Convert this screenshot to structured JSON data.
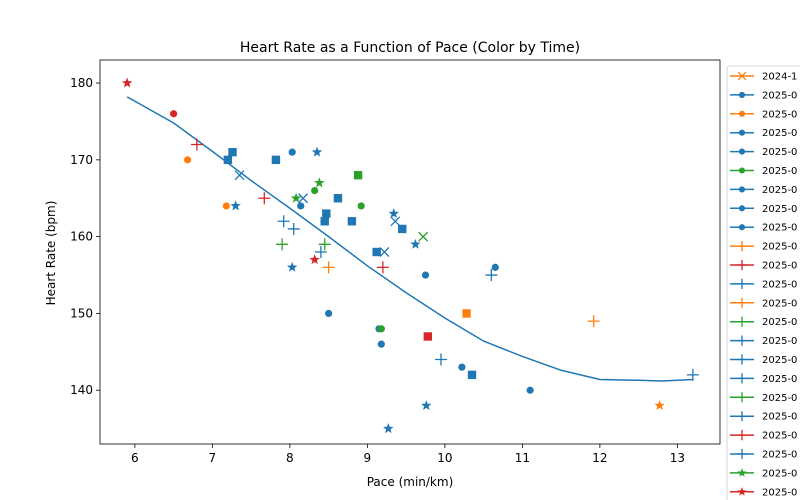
{
  "chart_data": {
    "type": "scatter",
    "title": "Heart Rate as a Function of Pace (Color by Time)",
    "xlabel": "Pace (min/km)",
    "ylabel": "Heart Rate (bpm)",
    "xlim": [
      5.55,
      13.55
    ],
    "ylim": [
      133,
      183
    ],
    "xticks": [
      6,
      7,
      8,
      9,
      10,
      11,
      12,
      13
    ],
    "yticks": [
      140,
      150,
      160,
      170,
      180
    ],
    "grid": false,
    "legend_position": "right",
    "colors": {
      "blue": "#1f77b4",
      "orange": "#ff7f0e",
      "green": "#2ca02c",
      "red": "#d62728"
    },
    "legend": [
      {
        "label": "2024-1",
        "color": "#ff7f0e",
        "marker": "x"
      },
      {
        "label": "2025-0",
        "color": "#1f77b4",
        "marker": "circle"
      },
      {
        "label": "2025-0",
        "color": "#ff7f0e",
        "marker": "circle"
      },
      {
        "label": "2025-0",
        "color": "#1f77b4",
        "marker": "circle"
      },
      {
        "label": "2025-0",
        "color": "#1f77b4",
        "marker": "circle"
      },
      {
        "label": "2025-0",
        "color": "#2ca02c",
        "marker": "circle"
      },
      {
        "label": "2025-0",
        "color": "#1f77b4",
        "marker": "circle"
      },
      {
        "label": "2025-0",
        "color": "#1f77b4",
        "marker": "circle"
      },
      {
        "label": "2025-0",
        "color": "#1f77b4",
        "marker": "circle"
      },
      {
        "label": "2025-0",
        "color": "#ff7f0e",
        "marker": "plus"
      },
      {
        "label": "2025-0",
        "color": "#d62728",
        "marker": "plus"
      },
      {
        "label": "2025-0",
        "color": "#1f77b4",
        "marker": "plus"
      },
      {
        "label": "2025-0",
        "color": "#ff7f0e",
        "marker": "plus"
      },
      {
        "label": "2025-0",
        "color": "#2ca02c",
        "marker": "plus"
      },
      {
        "label": "2025-0",
        "color": "#1f77b4",
        "marker": "plus"
      },
      {
        "label": "2025-0",
        "color": "#1f77b4",
        "marker": "plus"
      },
      {
        "label": "2025-0",
        "color": "#1f77b4",
        "marker": "plus"
      },
      {
        "label": "2025-0",
        "color": "#2ca02c",
        "marker": "plus"
      },
      {
        "label": "2025-0",
        "color": "#1f77b4",
        "marker": "plus"
      },
      {
        "label": "2025-0",
        "color": "#d62728",
        "marker": "plus"
      },
      {
        "label": "2025-0",
        "color": "#1f77b4",
        "marker": "plus"
      },
      {
        "label": "2025-0",
        "color": "#2ca02c",
        "marker": "star"
      },
      {
        "label": "2025-0",
        "color": "#d62728",
        "marker": "star"
      }
    ],
    "points": [
      {
        "x": 13.2,
        "y": 142,
        "color": "#1f77b4",
        "marker": "plus"
      },
      {
        "x": 5.9,
        "y": 180,
        "color": "#d62728",
        "marker": "star"
      },
      {
        "x": 6.5,
        "y": 176,
        "color": "#d62728",
        "marker": "circle"
      },
      {
        "x": 6.8,
        "y": 172,
        "color": "#d62728",
        "marker": "plus"
      },
      {
        "x": 6.68,
        "y": 170,
        "color": "#ff7f0e",
        "marker": "circle"
      },
      {
        "x": 7.2,
        "y": 170,
        "color": "#1f77b4",
        "marker": "square"
      },
      {
        "x": 7.26,
        "y": 171,
        "color": "#1f77b4",
        "marker": "square"
      },
      {
        "x": 7.35,
        "y": 168,
        "color": "#1f77b4",
        "marker": "x"
      },
      {
        "x": 7.18,
        "y": 164,
        "color": "#ff7f0e",
        "marker": "circle"
      },
      {
        "x": 7.3,
        "y": 164,
        "color": "#1f77b4",
        "marker": "star"
      },
      {
        "x": 7.67,
        "y": 165,
        "color": "#d62728",
        "marker": "plus"
      },
      {
        "x": 7.82,
        "y": 170,
        "color": "#1f77b4",
        "marker": "square"
      },
      {
        "x": 8.03,
        "y": 171,
        "color": "#1f77b4",
        "marker": "circle"
      },
      {
        "x": 8.35,
        "y": 171,
        "color": "#1f77b4",
        "marker": "star"
      },
      {
        "x": 8.38,
        "y": 167,
        "color": "#2ca02c",
        "marker": "star"
      },
      {
        "x": 8.32,
        "y": 166,
        "color": "#2ca02c",
        "marker": "circle"
      },
      {
        "x": 8.08,
        "y": 165,
        "color": "#2ca02c",
        "marker": "star"
      },
      {
        "x": 8.17,
        "y": 165,
        "color": "#1f77b4",
        "marker": "x"
      },
      {
        "x": 8.14,
        "y": 164,
        "color": "#1f77b4",
        "marker": "circle"
      },
      {
        "x": 7.92,
        "y": 162,
        "color": "#1f77b4",
        "marker": "plus"
      },
      {
        "x": 8.05,
        "y": 161,
        "color": "#1f77b4",
        "marker": "plus"
      },
      {
        "x": 7.9,
        "y": 159,
        "color": "#2ca02c",
        "marker": "plus"
      },
      {
        "x": 8.45,
        "y": 159,
        "color": "#2ca02c",
        "marker": "plus"
      },
      {
        "x": 8.4,
        "y": 158,
        "color": "#1f77b4",
        "marker": "plus"
      },
      {
        "x": 8.32,
        "y": 157,
        "color": "#d62728",
        "marker": "star"
      },
      {
        "x": 8.03,
        "y": 156,
        "color": "#1f77b4",
        "marker": "star"
      },
      {
        "x": 8.5,
        "y": 156,
        "color": "#ff7f0e",
        "marker": "plus"
      },
      {
        "x": 8.62,
        "y": 165,
        "color": "#1f77b4",
        "marker": "square"
      },
      {
        "x": 8.47,
        "y": 163,
        "color": "#1f77b4",
        "marker": "square"
      },
      {
        "x": 8.45,
        "y": 162,
        "color": "#1f77b4",
        "marker": "square"
      },
      {
        "x": 8.88,
        "y": 168,
        "color": "#2ca02c",
        "marker": "square"
      },
      {
        "x": 8.92,
        "y": 164,
        "color": "#2ca02c",
        "marker": "circle"
      },
      {
        "x": 8.8,
        "y": 162,
        "color": "#1f77b4",
        "marker": "square"
      },
      {
        "x": 8.5,
        "y": 150,
        "color": "#1f77b4",
        "marker": "circle"
      },
      {
        "x": 9.12,
        "y": 158,
        "color": "#1f77b4",
        "marker": "square"
      },
      {
        "x": 9.22,
        "y": 158,
        "color": "#1f77b4",
        "marker": "x"
      },
      {
        "x": 9.2,
        "y": 156,
        "color": "#d62728",
        "marker": "plus"
      },
      {
        "x": 9.34,
        "y": 163,
        "color": "#1f77b4",
        "marker": "star"
      },
      {
        "x": 9.36,
        "y": 162,
        "color": "#1f77b4",
        "marker": "x"
      },
      {
        "x": 9.45,
        "y": 161,
        "color": "#1f77b4",
        "marker": "square"
      },
      {
        "x": 9.62,
        "y": 159,
        "color": "#1f77b4",
        "marker": "star"
      },
      {
        "x": 9.72,
        "y": 160,
        "color": "#2ca02c",
        "marker": "x"
      },
      {
        "x": 9.15,
        "y": 148,
        "color": "#1f77b4",
        "marker": "circle"
      },
      {
        "x": 9.18,
        "y": 148,
        "color": "#2ca02c",
        "marker": "circle"
      },
      {
        "x": 9.18,
        "y": 146,
        "color": "#1f77b4",
        "marker": "circle"
      },
      {
        "x": 9.75,
        "y": 155,
        "color": "#1f77b4",
        "marker": "circle"
      },
      {
        "x": 9.78,
        "y": 147,
        "color": "#d62728",
        "marker": "square"
      },
      {
        "x": 9.95,
        "y": 144,
        "color": "#1f77b4",
        "marker": "plus"
      },
      {
        "x": 9.27,
        "y": 135,
        "color": "#1f77b4",
        "marker": "star"
      },
      {
        "x": 9.76,
        "y": 138,
        "color": "#1f77b4",
        "marker": "star"
      },
      {
        "x": 10.22,
        "y": 143,
        "color": "#1f77b4",
        "marker": "circle"
      },
      {
        "x": 10.28,
        "y": 150,
        "color": "#ff7f0e",
        "marker": "square"
      },
      {
        "x": 10.35,
        "y": 142,
        "color": "#1f77b4",
        "marker": "square"
      },
      {
        "x": 10.6,
        "y": 155,
        "color": "#1f77b4",
        "marker": "plus"
      },
      {
        "x": 10.65,
        "y": 156,
        "color": "#1f77b4",
        "marker": "circle"
      },
      {
        "x": 11.1,
        "y": 140,
        "color": "#1f77b4",
        "marker": "circle"
      },
      {
        "x": 11.92,
        "y": 149,
        "color": "#ff7f0e",
        "marker": "plus"
      },
      {
        "x": 12.77,
        "y": 138,
        "color": "#ff7f0e",
        "marker": "star"
      }
    ],
    "trend_line": {
      "color": "#1f77b4",
      "x": [
        5.9,
        6.5,
        7.0,
        7.5,
        8.0,
        8.5,
        9.0,
        9.5,
        10.0,
        10.5,
        11.0,
        11.5,
        12.0,
        12.5,
        12.8,
        13.0,
        13.2
      ],
      "y": [
        178.2,
        174.8,
        171.1,
        167.3,
        163.7,
        160.0,
        156.2,
        152.7,
        149.4,
        146.4,
        144.4,
        142.6,
        141.4,
        141.3,
        141.2,
        141.3,
        141.4
      ]
    }
  }
}
